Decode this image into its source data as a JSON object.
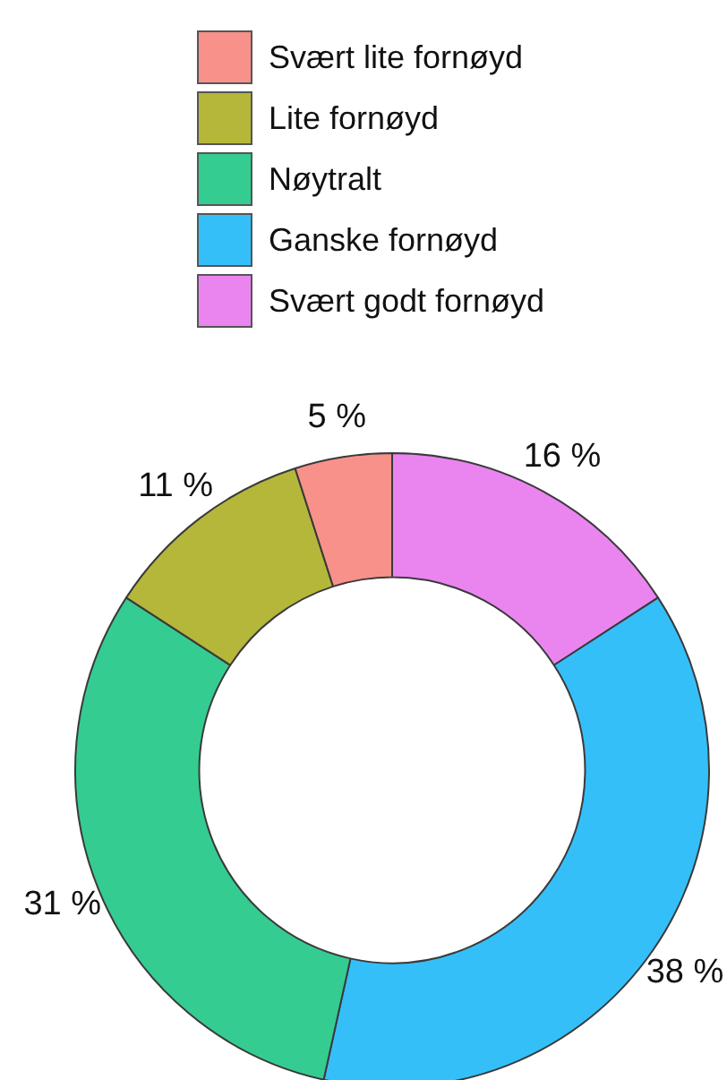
{
  "chart_data": {
    "type": "donut",
    "categories": [
      "Svært lite fornøyd",
      "Lite fornøyd",
      "Nøytralt",
      "Ganske fornøyd",
      "Svært godt fornøyd"
    ],
    "values": [
      5,
      11,
      31,
      38,
      16
    ],
    "colors": [
      "#f8918a",
      "#b5b73a",
      "#35cc92",
      "#35bff8",
      "#ea85f0"
    ],
    "value_labels": [
      "5 %",
      "11 %",
      "31 %",
      "38 %",
      "16 %"
    ],
    "legend": "top"
  }
}
